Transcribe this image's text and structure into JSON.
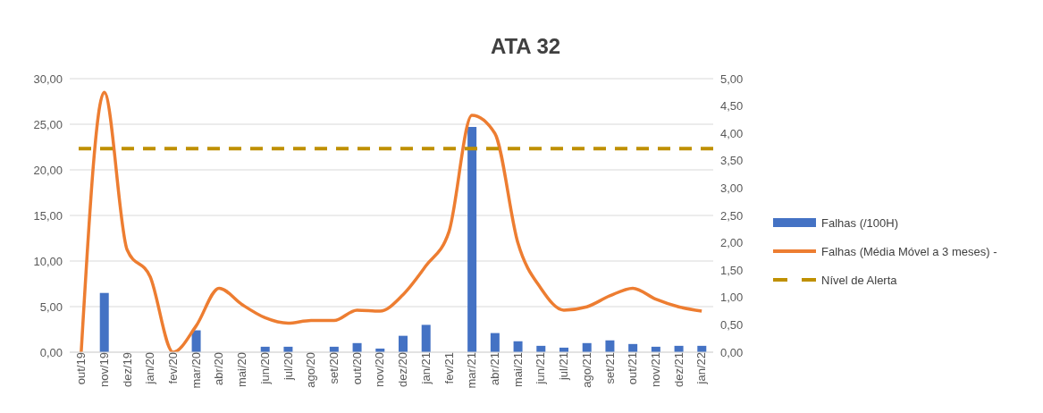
{
  "chart_data": {
    "type": "bar",
    "title": "ATA 32",
    "categories": [
      "out/19",
      "nov/19",
      "dez/19",
      "jan/20",
      "fev/20",
      "mar/20",
      "abr/20",
      "mai/20",
      "jun/20",
      "jul/20",
      "ago/20",
      "set/20",
      "out/20",
      "nov/20",
      "dez/20",
      "jan/21",
      "fev/21",
      "mar/21",
      "abr/21",
      "mai/21",
      "jun/21",
      "jul/21",
      "ago/21",
      "set/21",
      "out/21",
      "nov/21",
      "dez/21",
      "jan/22"
    ],
    "series": [
      {
        "name": "Falhas (/100H)",
        "color": "#4472c4",
        "values": [
          0,
          6.5,
          0,
          0,
          0,
          2.4,
          0,
          0,
          0.6,
          0.6,
          0,
          0.6,
          1.0,
          0.4,
          1.8,
          3.0,
          0,
          24.7,
          2.1,
          1.2,
          0.7,
          0.5,
          1.0,
          1.3,
          0.9,
          0.6,
          0.7,
          0.7
        ]
      },
      {
        "name": "Falhas (Média Móvel a 3 meses) -",
        "type": "line",
        "axis": "y2",
        "color": "#ed7d31",
        "values": [
          0,
          4.75,
          1.87,
          1.38,
          0,
          0.48,
          1.17,
          0.87,
          0.63,
          0.53,
          0.58,
          0.58,
          0.77,
          0.75,
          1.05,
          1.58,
          2.2,
          4.33,
          4.0,
          2.0,
          1.17,
          0.77,
          0.83,
          1.03,
          1.17,
          0.97,
          0.83,
          0.75
        ]
      }
    ],
    "ref_lines": [
      {
        "axis": "y2",
        "value": 3.72,
        "label": "Nível de Alerta",
        "color": "#bf9000",
        "line_style": "dashed"
      }
    ],
    "ylim": [
      0,
      30
    ],
    "yticks": [
      {
        "value": 0,
        "label": "0,00"
      },
      {
        "value": 5,
        "label": "5,00"
      },
      {
        "value": 10,
        "label": "10,00"
      },
      {
        "value": 15,
        "label": "15,00"
      },
      {
        "value": 20,
        "label": "20,00"
      },
      {
        "value": 25,
        "label": "25,00"
      },
      {
        "value": 30,
        "label": "30,00"
      }
    ],
    "y2lim": [
      0,
      5
    ],
    "y2ticks": [
      {
        "value": 0,
        "label": "0,00"
      },
      {
        "value": 0.5,
        "label": "0,50"
      },
      {
        "value": 1,
        "label": "1,00"
      },
      {
        "value": 1.5,
        "label": "1,50"
      },
      {
        "value": 2,
        "label": "2,00"
      },
      {
        "value": 2.5,
        "label": "2,50"
      },
      {
        "value": 3,
        "label": "3,00"
      },
      {
        "value": 3.5,
        "label": "3,50"
      },
      {
        "value": 4,
        "label": "4,00"
      },
      {
        "value": 4.5,
        "label": "4,50"
      },
      {
        "value": 5,
        "label": "5,00"
      }
    ],
    "grid": "y",
    "legend": "right",
    "marker": "none"
  }
}
